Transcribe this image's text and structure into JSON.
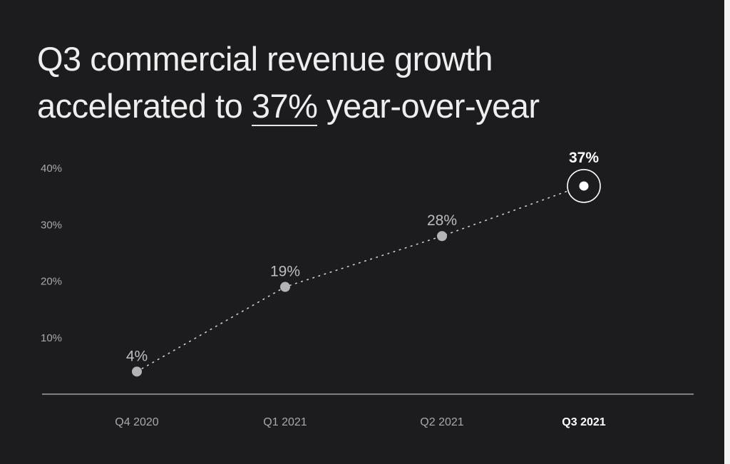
{
  "headline": {
    "line1": "Q3 commercial revenue growth",
    "line2_prefix": "accelerated to ",
    "line2_highlight": "37%",
    "line2_suffix": " year-over-year"
  },
  "chart_data": {
    "type": "line",
    "title": "Q3 commercial revenue growth accelerated to 37% year-over-year",
    "categories": [
      "Q4 2020",
      "Q1 2021",
      "Q2 2021",
      "Q3 2021"
    ],
    "series": [
      {
        "values": [
          4,
          19,
          28,
          37
        ],
        "data_labels": [
          "4%",
          "19%",
          "28%",
          "37%"
        ]
      }
    ],
    "yticks": [
      10,
      20,
      30,
      40
    ],
    "ytick_labels": [
      "10%",
      "20%",
      "30%",
      "40%"
    ],
    "ylim": [
      0,
      45
    ],
    "highlighted_category": "Q3 2021",
    "grid": false,
    "line_style": "dotted",
    "colors": {
      "background": "#1c1b1e",
      "marker": "#b4b4b4",
      "highlight": "#ffffff",
      "axis": "#bdbdbd",
      "tick_label": "#a9a9a9",
      "label": "#bdbdbd"
    }
  }
}
